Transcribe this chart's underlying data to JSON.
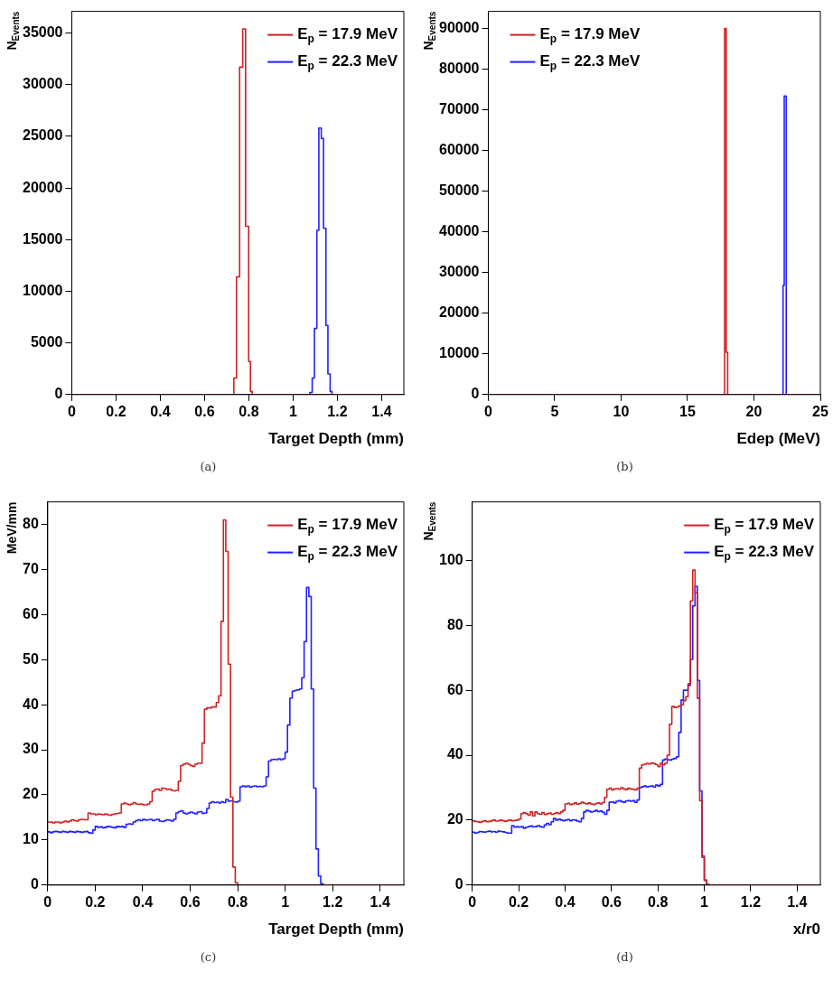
{
  "chart_data": [
    {
      "type": "histogram",
      "xlabel": "Target Depth (mm)",
      "ylabel": "N$_{Events}$",
      "xlim": [
        0,
        1.5
      ],
      "ylim": [
        0,
        37100
      ],
      "xticks": [
        0,
        0.2,
        0.4,
        0.6,
        0.8,
        1,
        1.2,
        1.4
      ],
      "yticks": [
        0,
        5000,
        10000,
        15000,
        20000,
        25000,
        30000,
        35000
      ],
      "legend": "top right",
      "annotations": [
        "(a)"
      ],
      "bins": [
        0,
        0.732,
        0.744,
        0.758,
        0.772,
        0.785,
        0.799,
        0.807,
        0.815,
        1.075,
        1.086,
        1.096,
        1.107,
        1.116,
        1.127,
        1.137,
        1.148,
        1.157,
        1.167,
        1.175,
        1.5
      ],
      "series": [
        {
          "name": "E$_{p}$ = 17.9 MeV",
          "color": "#d02020",
          "values": [
            0,
            1600,
            11400,
            31700,
            35400,
            16300,
            3200,
            300,
            0,
            0,
            0,
            0,
            0,
            0,
            0,
            0,
            0,
            0,
            0,
            0
          ]
        },
        {
          "name": "E$_{p}$ = 22.3 MeV",
          "color": "#2020ff",
          "values": [
            0,
            0,
            0,
            0,
            0,
            0,
            0,
            0,
            0,
            200,
            1600,
            6400,
            15900,
            25800,
            24800,
            16100,
            6700,
            2000,
            300,
            0
          ]
        }
      ]
    },
    {
      "type": "histogram",
      "xlabel": "Edep (MeV)",
      "ylabel": "N$_{Events}$",
      "xlim": [
        0,
        25
      ],
      "ylim": [
        0,
        94200
      ],
      "xticks": [
        0,
        5,
        10,
        15,
        20,
        25
      ],
      "yticks": [
        0,
        10000,
        20000,
        30000,
        40000,
        50000,
        60000,
        70000,
        80000,
        90000
      ],
      "legend": "top left",
      "annotations": [
        "(b)"
      ],
      "bins": [
        0,
        17.79,
        17.91,
        18.02,
        22.19,
        22.28,
        22.43,
        25
      ],
      "series": [
        {
          "name": "E$_{p}$ = 17.9 MeV",
          "color": "#d02020",
          "values": [
            0,
            90000,
            10400,
            0,
            0,
            0,
            0
          ]
        },
        {
          "name": "E$_{p}$ = 22.3 MeV",
          "color": "#2020ff",
          "values": [
            0,
            0,
            0,
            0,
            26800,
            73400,
            0
          ]
        }
      ]
    },
    {
      "type": "histogram",
      "xlabel": "Target Depth (mm)",
      "ylabel": "MeV/mm",
      "xlim": [
        0,
        1.5
      ],
      "ylim": [
        0,
        85
      ],
      "xticks": [
        0,
        0.2,
        0.4,
        0.6,
        0.8,
        1,
        1.2,
        1.4
      ],
      "yticks": [
        0,
        10,
        20,
        30,
        40,
        50,
        60,
        70,
        80
      ],
      "legend": "top right",
      "annotations": [
        "(c)"
      ],
      "bins": [
        0,
        0.01,
        0.02,
        0.03,
        0.04,
        0.05,
        0.06,
        0.07,
        0.08,
        0.09,
        0.1,
        0.11,
        0.12,
        0.13,
        0.14,
        0.15,
        0.16,
        0.17,
        0.18,
        0.19,
        0.2,
        0.21,
        0.22,
        0.23,
        0.24,
        0.25,
        0.26,
        0.27,
        0.28,
        0.29,
        0.3,
        0.31,
        0.32,
        0.33,
        0.34,
        0.35,
        0.36,
        0.37,
        0.38,
        0.39,
        0.4,
        0.41,
        0.42,
        0.43,
        0.44,
        0.45,
        0.46,
        0.47,
        0.48,
        0.49,
        0.5,
        0.51,
        0.52,
        0.53,
        0.54,
        0.55,
        0.56,
        0.57,
        0.58,
        0.59,
        0.6,
        0.61,
        0.62,
        0.63,
        0.64,
        0.65,
        0.66,
        0.67,
        0.68,
        0.69,
        0.7,
        0.71,
        0.72,
        0.73,
        0.74,
        0.75,
        0.76,
        0.77,
        0.78,
        0.79,
        0.8,
        0.81,
        0.82,
        0.83,
        0.84,
        0.85,
        0.86,
        0.87,
        0.88,
        0.89,
        0.9,
        0.91,
        0.92,
        0.93,
        0.94,
        0.95,
        0.96,
        0.97,
        0.98,
        0.99,
        1,
        1.01,
        1.02,
        1.03,
        1.04,
        1.05,
        1.06,
        1.07,
        1.08,
        1.09,
        1.1,
        1.11,
        1.12,
        1.13,
        1.14,
        1.15,
        1.16,
        1.17,
        1.18,
        1.19,
        1.2,
        1.5
      ],
      "series": [
        {
          "name": "E$_{p}$ = 17.9 MeV",
          "color": "#d02020",
          "values": [
            14,
            14,
            13.8,
            14,
            14,
            13.8,
            14,
            14.2,
            14,
            14.2,
            14.5,
            14.3,
            14.2,
            14.5,
            14.6,
            14.5,
            14.5,
            16,
            15.8,
            15.8,
            15.6,
            15.8,
            15.7,
            15.6,
            15.8,
            15.6,
            15.5,
            15.7,
            15.8,
            15.9,
            16,
            18,
            18.2,
            18,
            17.8,
            18,
            18.3,
            18,
            17.9,
            18,
            17.8,
            17.8,
            18,
            18.5,
            20.8,
            21.2,
            21.3,
            21,
            21.5,
            21.4,
            21.2,
            21.3,
            21,
            20.9,
            21,
            23,
            26.5,
            26.8,
            27,
            26.8,
            26.5,
            26.3,
            26.8,
            27,
            27,
            31.5,
            39,
            39.3,
            39.3,
            39.5,
            39.5,
            40.5,
            42,
            58.5,
            81,
            74,
            49,
            19.5,
            4,
            0.5,
            0,
            0,
            0,
            0,
            0,
            0,
            0,
            0,
            0,
            0,
            0,
            0,
            0,
            0,
            0,
            0,
            0,
            0,
            0,
            0,
            0,
            0,
            0,
            0,
            0,
            0,
            0,
            0,
            0,
            0,
            0,
            0,
            0,
            0,
            0,
            0,
            0,
            0,
            0,
            0,
            0
          ]
        },
        {
          "name": "E$_{p}$ = 22.3 MeV",
          "color": "#2020ff",
          "values": [
            11.8,
            11.6,
            11.8,
            11.9,
            11.8,
            11.7,
            11.9,
            11.8,
            11.7,
            11.9,
            11.8,
            11.7,
            11.9,
            11.8,
            11.7,
            11.8,
            11.9,
            11.6,
            11.5,
            12.2,
            13,
            12.8,
            12.9,
            12.7,
            12.8,
            13,
            12.9,
            12.8,
            12.7,
            13,
            12.9,
            13,
            12.8,
            13.5,
            13.6,
            13.5,
            14,
            14.3,
            14.5,
            14.3,
            14.6,
            14.4,
            14.5,
            14.6,
            14.3,
            14.5,
            14.6,
            14.2,
            14.1,
            14.3,
            14.5,
            14.4,
            14.2,
            14.6,
            16,
            16.3,
            16.5,
            16,
            15.8,
            16,
            16.2,
            16,
            15.8,
            16.2,
            16.3,
            15.9,
            16,
            17,
            18.2,
            18.5,
            18.3,
            18.4,
            18.2,
            18.5,
            18.3,
            19,
            18.6,
            18.7,
            18.5,
            18.4,
            18.6,
            21.8,
            22,
            21.8,
            22,
            21.7,
            21.9,
            22,
            21.8,
            21.9,
            21.8,
            22,
            24,
            27.5,
            27.8,
            27.9,
            27.8,
            28,
            27.8,
            28,
            29.5,
            35.5,
            41.5,
            43,
            43.2,
            43.3,
            43.5,
            46,
            54,
            66,
            64,
            43.5,
            21.5,
            8,
            2,
            0.3,
            0,
            0,
            0,
            0,
            0
          ]
        }
      ]
    },
    {
      "type": "histogram",
      "xlabel": "x/r0",
      "ylabel": "N$_{Events}$",
      "xlim": [
        0,
        1.5
      ],
      "ylim": [
        0,
        118
      ],
      "xticks": [
        0,
        0.2,
        0.4,
        0.6,
        0.8,
        1,
        1.2,
        1.4
      ],
      "yticks": [
        0,
        20,
        40,
        60,
        80,
        100
      ],
      "legend": "top right",
      "annotations": [
        "(d)"
      ],
      "bins": [
        0,
        0.01,
        0.02,
        0.03,
        0.04,
        0.05,
        0.06,
        0.07,
        0.08,
        0.09,
        0.1,
        0.11,
        0.12,
        0.13,
        0.14,
        0.15,
        0.16,
        0.17,
        0.18,
        0.19,
        0.2,
        0.21,
        0.22,
        0.23,
        0.24,
        0.25,
        0.26,
        0.27,
        0.28,
        0.29,
        0.3,
        0.31,
        0.32,
        0.33,
        0.34,
        0.35,
        0.36,
        0.37,
        0.38,
        0.39,
        0.4,
        0.41,
        0.42,
        0.43,
        0.44,
        0.45,
        0.46,
        0.47,
        0.48,
        0.49,
        0.5,
        0.51,
        0.52,
        0.53,
        0.54,
        0.55,
        0.56,
        0.57,
        0.58,
        0.59,
        0.6,
        0.61,
        0.62,
        0.63,
        0.64,
        0.65,
        0.66,
        0.67,
        0.68,
        0.69,
        0.7,
        0.71,
        0.72,
        0.73,
        0.74,
        0.75,
        0.76,
        0.77,
        0.78,
        0.79,
        0.8,
        0.81,
        0.82,
        0.83,
        0.84,
        0.85,
        0.86,
        0.87,
        0.88,
        0.89,
        0.9,
        0.91,
        0.92,
        0.93,
        0.94,
        0.95,
        0.96,
        0.97,
        0.98,
        0.99,
        1,
        1.01,
        1.02,
        1.03,
        1.04,
        1.05,
        1.5
      ],
      "series": [
        {
          "name": "E$_{p}$ = 17.9 MeV",
          "color": "#d02020",
          "values": [
            19.8,
            19.6,
            19.5,
            19.3,
            19.6,
            19.8,
            19.5,
            19.6,
            19.8,
            20,
            19.7,
            19.8,
            20,
            19.8,
            19.6,
            19.9,
            20,
            19.8,
            19.9,
            20,
            20.3,
            22,
            22.3,
            22,
            21.5,
            22.5,
            21.3,
            22.5,
            22,
            21.8,
            22.3,
            21.7,
            22,
            22.2,
            21.8,
            22,
            22.3,
            22,
            22.5,
            23,
            25,
            25.2,
            24.8,
            25,
            25.3,
            24.9,
            25.1,
            25.5,
            25.2,
            25,
            25.3,
            25,
            24.8,
            25.1,
            25.3,
            25,
            25.4,
            27,
            29.5,
            29.8,
            29.3,
            29.6,
            29.7,
            29.5,
            30,
            29.6,
            29.4,
            29.8,
            29.6,
            29.5,
            29.3,
            29.8,
            36,
            37,
            37.2,
            37.5,
            37.3,
            37.6,
            37.4,
            37.1,
            36.5,
            37.5,
            37,
            37.5,
            40,
            49.5,
            55,
            54.7,
            54.8,
            55.2,
            55.5,
            56.8,
            58,
            62,
            87.5,
            97,
            90,
            57.5,
            26,
            8.5,
            1.5,
            0.2,
            0,
            0,
            0,
            0
          ]
        },
        {
          "name": "E$_{p}$ = 22.3 MeV",
          "color": "#2020ff",
          "values": [
            16.3,
            16,
            16.2,
            16.5,
            16.4,
            16.3,
            16.5,
            16.6,
            16.4,
            16.5,
            16.3,
            16.6,
            16.5,
            16.4,
            16.2,
            16,
            16,
            18.3,
            17.8,
            18,
            17.8,
            18,
            17.5,
            17.8,
            18,
            18.2,
            17.9,
            18,
            18.3,
            18,
            17.8,
            18.5,
            19,
            18.6,
            19.5,
            20.5,
            20,
            20.3,
            20,
            19.8,
            20,
            20.2,
            19.8,
            20.1,
            20,
            19.7,
            19.5,
            20.5,
            22.5,
            23,
            22.8,
            22.5,
            22.7,
            23,
            22.6,
            22.8,
            22.4,
            21.8,
            23,
            25.5,
            25.6,
            25.3,
            25.8,
            26,
            25.7,
            25.5,
            25.9,
            26,
            25.8,
            26,
            25.5,
            26.2,
            30,
            30.3,
            30.5,
            30.2,
            30.4,
            30.5,
            30.2,
            30.8,
            30.5,
            31,
            38.5,
            38.8,
            38.6,
            38.5,
            38.8,
            39,
            39.5,
            47,
            57,
            60,
            60,
            61.5,
            69.5,
            86,
            92,
            63,
            29,
            9,
            1.5,
            0.2,
            0,
            0,
            0,
            0
          ]
        }
      ]
    }
  ]
}
